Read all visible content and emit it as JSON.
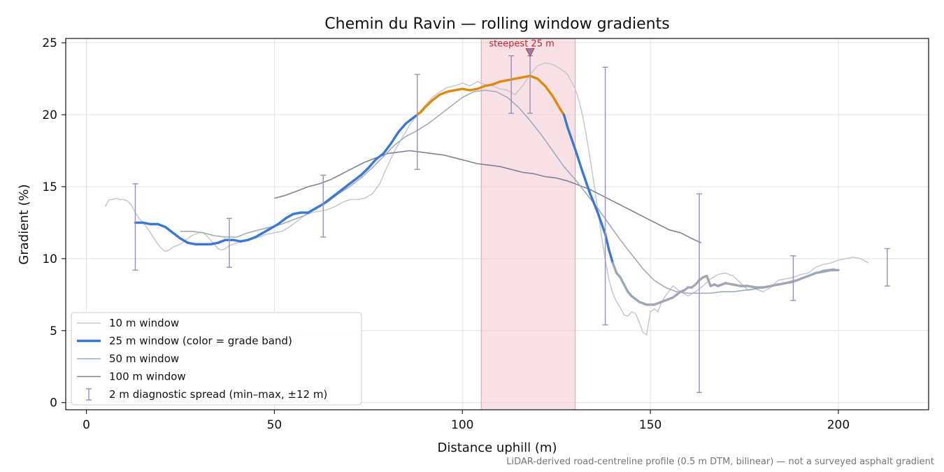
{
  "chart_data": {
    "type": "line",
    "title": "Chemin du Ravin — rolling window gradients",
    "xlabel": "Distance uphill (m)",
    "ylabel": "Gradient (%)",
    "xlim": [
      -5.5,
      224
    ],
    "ylim": [
      -0.5,
      25.3
    ],
    "xticks": [
      0,
      50,
      100,
      150,
      200
    ],
    "yticks": [
      0,
      5,
      10,
      15,
      20,
      25
    ],
    "grid": true,
    "legend_position": "lower-left",
    "caption": "LiDAR-derived road-centreline profile (0.5 m DTM, bilinear) — not a surveyed asphalt gradient",
    "steepest": {
      "label": "steepest 25 m",
      "x_start": 105,
      "x_end": 130,
      "marker_x": 118,
      "marker_y": 24.3
    },
    "colors": {
      "w10": "#c6cad3",
      "w25_blue": "#3b78d4",
      "w25_orange": "#e08a0c",
      "w25_grey": "#9ea7b4",
      "w50": "#a2abbd",
      "w100": "#7d8494",
      "errorbar": "#9d95bb",
      "highlight": "#f0c4cb",
      "highlight_edge": "#e3a0aa",
      "annotation": "#c0262d"
    },
    "series": [
      {
        "name": "10 m window",
        "x": [
          5,
          6,
          7,
          8,
          9,
          10,
          11,
          12,
          13,
          14,
          15,
          16,
          17,
          18,
          19,
          20,
          21,
          22,
          23,
          24,
          25,
          26,
          27,
          28,
          29,
          30,
          31,
          32,
          33,
          34,
          35,
          36,
          37,
          38,
          39,
          40,
          42,
          44,
          46,
          48,
          50,
          52,
          54,
          56,
          58,
          60,
          62,
          64,
          66,
          68,
          70,
          72,
          74,
          76,
          78,
          80,
          82,
          84,
          86,
          88,
          90,
          92,
          94,
          96,
          98,
          100,
          102,
          104,
          106,
          108,
          110,
          112,
          114,
          116,
          118,
          120,
          122,
          124,
          126,
          128,
          129,
          130,
          131,
          132,
          133,
          134,
          135,
          136,
          137,
          138,
          139,
          140,
          141,
          142,
          143,
          144,
          145,
          146,
          147,
          148,
          149,
          150,
          151,
          152,
          153,
          154,
          156,
          158,
          160,
          162,
          164,
          166,
          168,
          170,
          172,
          174,
          176,
          178,
          180,
          182,
          184,
          186,
          188,
          190,
          192,
          194,
          196,
          198,
          200,
          202,
          204,
          206,
          208
        ],
        "y": [
          13.6,
          14.1,
          14.1,
          14.2,
          14.1,
          14.1,
          14.0,
          13.7,
          13.2,
          12.8,
          12.5,
          12.2,
          11.8,
          11.4,
          11.0,
          10.7,
          10.5,
          10.6,
          10.8,
          10.9,
          11.0,
          11.2,
          11.4,
          11.6,
          11.7,
          11.8,
          11.8,
          11.6,
          11.3,
          11.0,
          10.7,
          10.6,
          10.7,
          10.9,
          11.0,
          11.1,
          11.2,
          11.4,
          11.5,
          11.7,
          11.8,
          11.9,
          12.2,
          12.6,
          13.0,
          13.2,
          13.3,
          13.4,
          13.6,
          13.9,
          14.1,
          14.1,
          14.2,
          14.5,
          15.2,
          16.4,
          17.5,
          18.4,
          19.3,
          20.0,
          20.6,
          21.2,
          21.6,
          21.9,
          22.0,
          22.2,
          22.0,
          22.3,
          22.1,
          22.0,
          21.8,
          21.7,
          21.4,
          22.0,
          22.8,
          23.4,
          23.6,
          23.5,
          23.2,
          22.8,
          22.3,
          21.8,
          21.0,
          19.9,
          18.5,
          16.9,
          15.2,
          13.4,
          11.6,
          9.9,
          8.5,
          7.6,
          7.0,
          6.6,
          6.1,
          6.0,
          6.3,
          6.2,
          5.6,
          4.9,
          4.7,
          6.3,
          6.5,
          6.3,
          7.0,
          7.4,
          8.1,
          7.7,
          7.4,
          7.7,
          8.1,
          8.6,
          8.9,
          9.0,
          8.8,
          8.3,
          7.8,
          7.9,
          7.7,
          8.0,
          8.5,
          8.6,
          8.7,
          8.9,
          9.0,
          9.4,
          9.6,
          9.7,
          9.9,
          10.0,
          10.1,
          10.0,
          9.7
        ]
      },
      {
        "name": "25 m window (color = grade band)",
        "x": [
          13,
          15,
          17,
          19,
          21,
          23,
          25,
          27,
          29,
          31,
          33,
          35,
          37,
          39,
          41,
          43,
          45,
          47,
          49,
          51,
          53,
          55,
          57,
          59,
          61,
          63,
          65,
          67,
          69,
          71,
          73,
          75,
          77,
          79,
          81,
          83,
          85,
          87,
          88,
          89,
          90,
          92,
          94,
          96,
          98,
          100,
          102,
          104,
          106,
          108,
          110,
          112,
          114,
          116,
          118,
          120,
          122,
          124,
          126,
          127,
          128,
          130,
          132,
          134,
          136,
          138,
          139,
          140,
          141,
          142,
          143,
          144,
          145,
          146,
          147,
          148,
          149,
          150,
          151,
          152,
          153,
          154,
          155,
          156,
          157,
          158,
          159,
          160,
          161,
          162,
          163,
          164,
          165,
          166,
          167,
          168,
          169,
          170,
          172,
          174,
          176,
          178,
          180,
          182,
          184,
          186,
          188,
          190,
          192,
          194,
          196,
          198,
          200
        ],
        "y": [
          12.5,
          12.5,
          12.4,
          12.4,
          12.2,
          11.8,
          11.4,
          11.1,
          11.0,
          11.0,
          11.0,
          11.1,
          11.3,
          11.3,
          11.2,
          11.3,
          11.5,
          11.8,
          12.1,
          12.4,
          12.8,
          13.1,
          13.2,
          13.2,
          13.5,
          13.8,
          14.2,
          14.6,
          15.0,
          15.4,
          15.8,
          16.3,
          16.9,
          17.3,
          18.0,
          18.8,
          19.4,
          19.8,
          20.0,
          20.2,
          20.5,
          21.0,
          21.4,
          21.6,
          21.7,
          21.8,
          21.7,
          21.8,
          22.0,
          22.1,
          22.3,
          22.4,
          22.5,
          22.6,
          22.7,
          22.5,
          22.0,
          21.3,
          20.4,
          20.0,
          19.1,
          17.6,
          16.0,
          14.5,
          13.2,
          11.7,
          10.6,
          9.7,
          9.0,
          8.7,
          8.2,
          7.7,
          7.4,
          7.2,
          7.0,
          6.9,
          6.8,
          6.8,
          6.8,
          6.9,
          7.0,
          7.1,
          7.2,
          7.3,
          7.5,
          7.7,
          7.8,
          8.0,
          8.0,
          8.2,
          8.5,
          8.7,
          8.8,
          8.1,
          8.2,
          8.1,
          8.2,
          8.3,
          8.2,
          8.1,
          8.1,
          8.0,
          8.0,
          8.1,
          8.2,
          8.3,
          8.4,
          8.6,
          8.8,
          9.0,
          9.1,
          9.2,
          9.2
        ]
      },
      {
        "name": "50 m window",
        "x": [
          25,
          28,
          31,
          34,
          37,
          40,
          43,
          46,
          49,
          52,
          55,
          58,
          61,
          64,
          67,
          70,
          73,
          76,
          79,
          82,
          85,
          88,
          91,
          94,
          97,
          100,
          103,
          106,
          109,
          112,
          115,
          118,
          121,
          124,
          127,
          130,
          133,
          136,
          139,
          142,
          145,
          148,
          151,
          154,
          157,
          160,
          163,
          166,
          169,
          172,
          175,
          178,
          181,
          184,
          187,
          190,
          193,
          196,
          199
        ],
        "y": [
          11.9,
          11.9,
          11.8,
          11.6,
          11.5,
          11.5,
          11.8,
          12.0,
          12.2,
          12.4,
          12.7,
          13.0,
          13.5,
          13.9,
          14.5,
          15.0,
          15.6,
          16.3,
          17.1,
          17.9,
          18.5,
          18.9,
          19.4,
          20.0,
          20.6,
          21.2,
          21.6,
          21.7,
          21.6,
          21.2,
          20.5,
          19.6,
          18.6,
          17.5,
          16.4,
          15.5,
          14.5,
          13.5,
          12.4,
          11.3,
          10.3,
          9.3,
          8.5,
          8.0,
          7.7,
          7.6,
          7.6,
          7.6,
          7.7,
          7.7,
          7.8,
          7.9,
          8.0,
          8.2,
          8.4,
          8.6,
          8.9,
          9.2,
          9.3
        ]
      },
      {
        "name": "100 m window",
        "x": [
          50,
          53,
          56,
          59,
          62,
          65,
          68,
          71,
          74,
          77,
          80,
          83,
          86,
          89,
          92,
          95,
          98,
          101,
          104,
          107,
          110,
          113,
          116,
          119,
          122,
          125,
          128,
          131,
          134,
          137,
          140,
          143,
          146,
          149,
          152,
          155,
          158,
          161,
          163.5
        ],
        "y": [
          14.2,
          14.4,
          14.7,
          15.0,
          15.2,
          15.5,
          15.9,
          16.3,
          16.7,
          17.0,
          17.3,
          17.4,
          17.5,
          17.4,
          17.3,
          17.2,
          17.0,
          16.8,
          16.6,
          16.5,
          16.4,
          16.2,
          16.0,
          15.9,
          15.7,
          15.6,
          15.4,
          15.1,
          14.8,
          14.4,
          14.0,
          13.6,
          13.2,
          12.8,
          12.4,
          12.0,
          11.8,
          11.4,
          11.1
        ]
      },
      {
        "name": "2 m diagnostic spread (min–max, ±12 m)",
        "x": [
          13,
          38,
          63,
          88,
          113,
          118,
          138,
          163,
          188,
          213
        ],
        "low": [
          9.2,
          9.4,
          11.5,
          16.2,
          20.1,
          20.1,
          5.4,
          0.7,
          7.1,
          8.1
        ],
        "high": [
          15.2,
          12.8,
          15.8,
          22.8,
          24.1,
          24.1,
          23.3,
          14.5,
          10.2,
          10.7
        ]
      }
    ]
  }
}
